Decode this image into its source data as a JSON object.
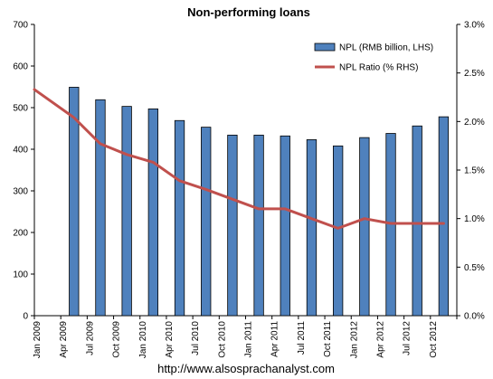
{
  "chart_data": {
    "type": "bar",
    "title": "Non-performing loans",
    "categories": [
      "Jan 2009",
      "Apr 2009",
      "Jul 2009",
      "Oct 2009",
      "Jan 2010",
      "Apr 2010",
      "Jul 2010",
      "Oct 2010",
      "Jan 2011",
      "Apr 2011",
      "Jul 2011",
      "Oct 2011",
      "Jan 2012",
      "Apr 2012",
      "Jul 2012",
      "Oct 2012"
    ],
    "series": [
      {
        "name": "NPL (RMB billion, LHS)",
        "type": "bar",
        "axis": "left",
        "color": "#4f81bd",
        "values": [
          null,
          549,
          519,
          503,
          497,
          469,
          453,
          434,
          434,
          432,
          423,
          408,
          428,
          438,
          456,
          478
        ]
      },
      {
        "name": "NPL Ratio (% RHS)",
        "type": "line",
        "axis": "right",
        "color": "#c0504d",
        "values": [
          2.33,
          2.04,
          1.77,
          1.66,
          1.58,
          1.39,
          1.3,
          1.2,
          1.1,
          1.1,
          1.0,
          0.9,
          1.0,
          0.95,
          0.95,
          0.95
        ]
      }
    ],
    "y_left": {
      "min": 0,
      "max": 700,
      "ticks": [
        "0",
        "100",
        "200",
        "300",
        "400",
        "500",
        "600",
        "700"
      ]
    },
    "y_right": {
      "min": 0,
      "max": 3.0,
      "ticks": [
        "0.0%",
        "0.5%",
        "1.0%",
        "1.5%",
        "2.0%",
        "2.5%",
        "3.0%"
      ]
    },
    "legend_position": "top-right",
    "grid": false
  },
  "footer": "http://www.alsosprachanalyst.com"
}
